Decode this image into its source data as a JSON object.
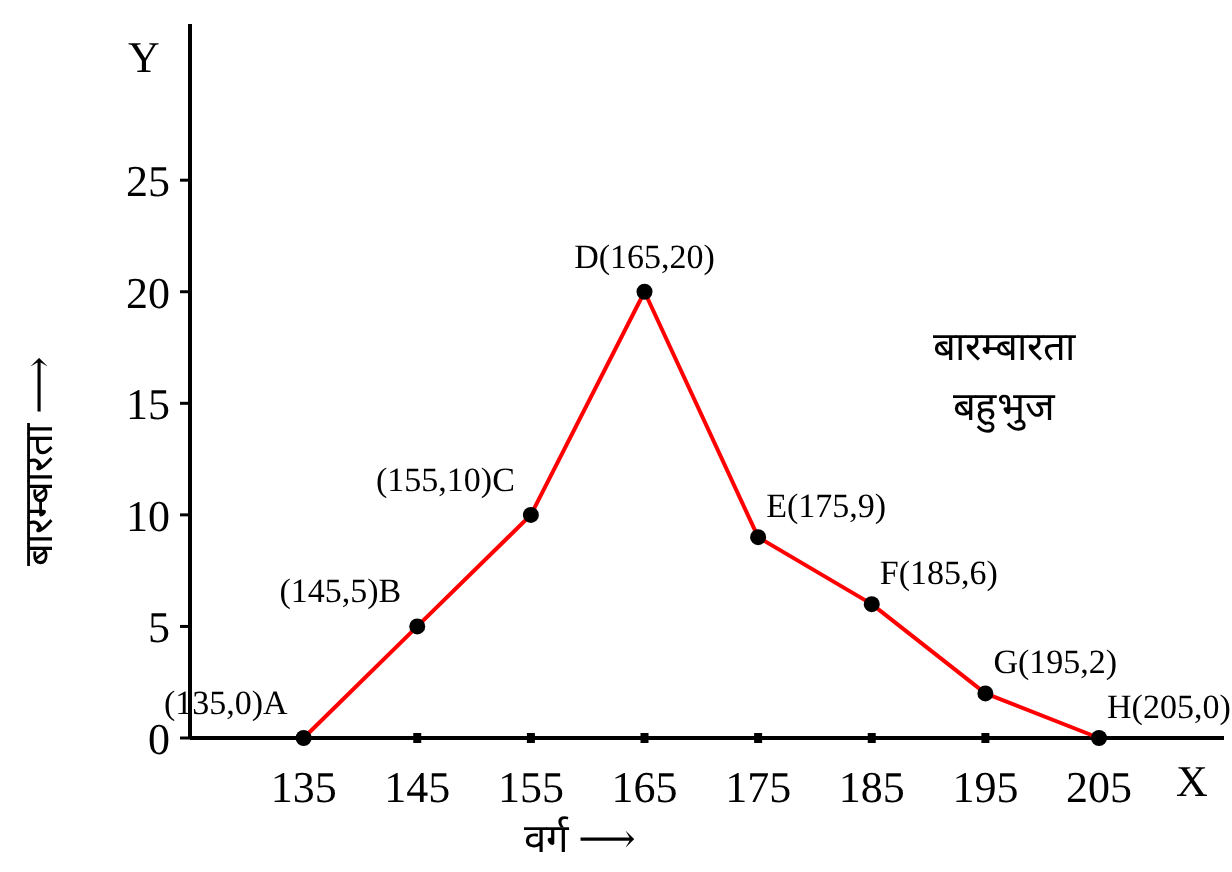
{
  "chart_data": {
    "type": "line",
    "xlabel": "वर्ग ⟶",
    "ylabel": "बारम्बारता ⟶",
    "x": [
      135,
      145,
      155,
      165,
      175,
      185,
      195,
      205
    ],
    "series": [
      {
        "color": "#ff0000",
        "values": [
          0,
          5,
          10,
          20,
          9,
          6,
          2,
          0
        ]
      }
    ],
    "xlim": [
      125,
      216
    ],
    "ylim": [
      0,
      32
    ],
    "xticks": [
      135,
      145,
      155,
      165,
      175,
      185,
      195,
      205
    ],
    "yticks": [
      0,
      5,
      10,
      15,
      20,
      25
    ],
    "marker": "circle",
    "grid": false,
    "annotations": [
      {
        "text": "(135,0)A",
        "x": 135,
        "y": 0
      },
      {
        "text": "(145,5)B",
        "x": 145,
        "y": 5
      },
      {
        "text": "(155,10)C",
        "x": 155,
        "y": 10
      },
      {
        "text": "D(165,20)",
        "x": 165,
        "y": 20
      },
      {
        "text": "E(175,9)",
        "x": 175,
        "y": 9
      },
      {
        "text": "F(185,6)",
        "x": 185,
        "y": 6
      },
      {
        "text": "G(195,2)",
        "x": 195,
        "y": 2
      },
      {
        "text": "H(205,0)",
        "x": 205,
        "y": 0
      },
      "बारम्बारता\nबहुभुज",
      "X",
      "Y"
    ]
  }
}
